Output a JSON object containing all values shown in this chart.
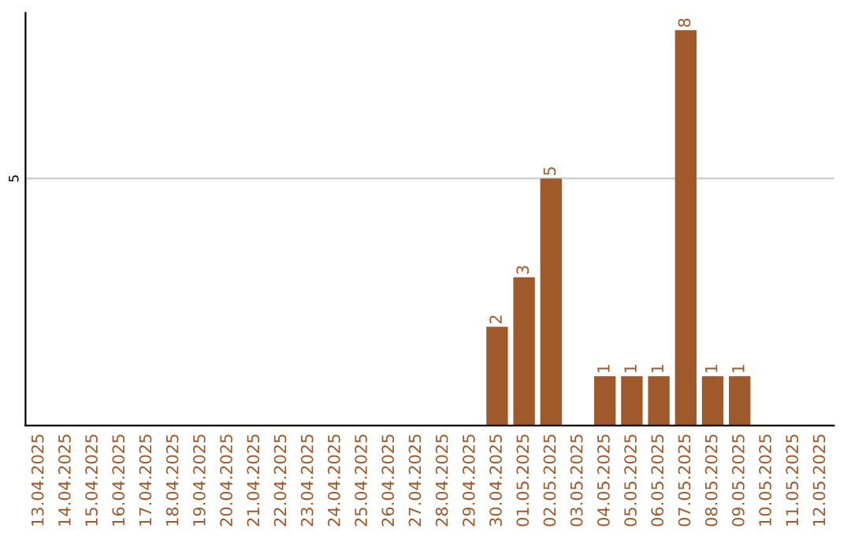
{
  "chart_data": {
    "type": "bar",
    "categories": [
      "13.04.2025",
      "14.04.2025",
      "15.04.2025",
      "16.04.2025",
      "17.04.2025",
      "18.04.2025",
      "19.04.2025",
      "20.04.2025",
      "21.04.2025",
      "22.04.2025",
      "23.04.2025",
      "24.04.2025",
      "25.04.2025",
      "26.04.2025",
      "27.04.2025",
      "28.04.2025",
      "29.04.2025",
      "30.04.2025",
      "01.05.2025",
      "02.05.2025",
      "03.05.2025",
      "04.05.2025",
      "05.05.2025",
      "06.05.2025",
      "07.05.2025",
      "08.05.2025",
      "09.05.2025",
      "10.05.2025",
      "11.05.2025",
      "12.05.2025"
    ],
    "values": [
      null,
      null,
      null,
      null,
      null,
      null,
      null,
      null,
      null,
      null,
      null,
      null,
      null,
      null,
      null,
      null,
      null,
      2,
      3,
      5,
      null,
      1,
      1,
      1,
      8,
      1,
      1,
      null,
      null,
      null
    ],
    "data_labels": true,
    "color": "#a0592a",
    "ylim": [
      0,
      8.35
    ],
    "yticks": [
      5
    ],
    "grid": "y"
  }
}
